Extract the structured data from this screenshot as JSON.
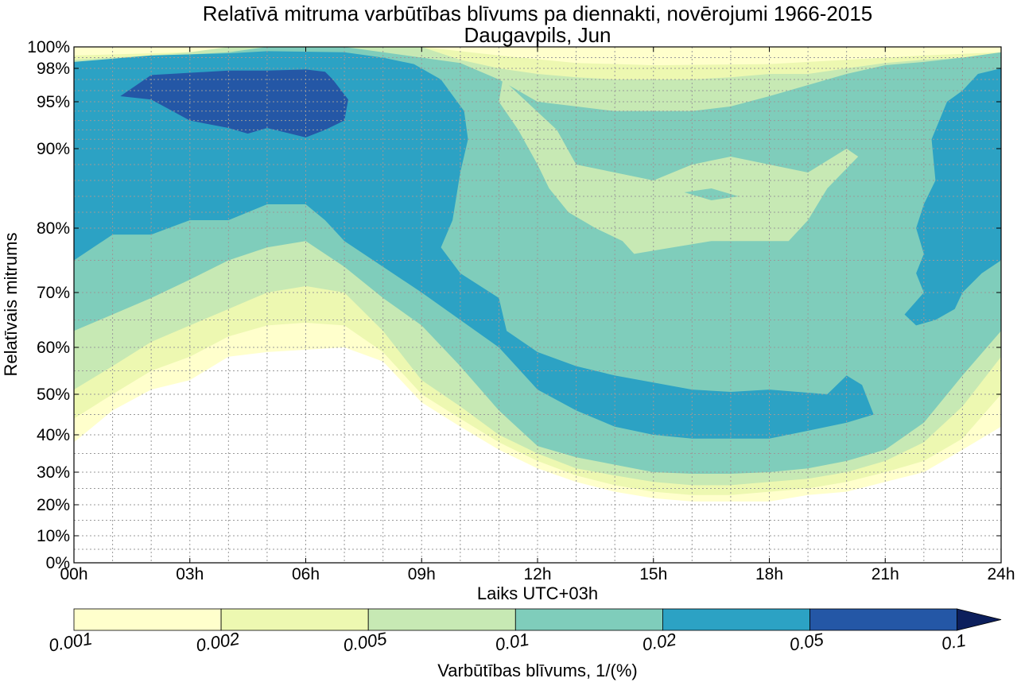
{
  "chart_data": {
    "type": "contour",
    "title": "Relatīvā mitruma varbūtības blīvums pa diennakti, novērojumi 1966-2015",
    "subtitle": "Daugavpils, Jun",
    "xlabel": "Laiks UTC+03h",
    "ylabel": "Relatīvais mitrums",
    "xlim": [
      0,
      24
    ],
    "x_ticks": [
      "00h",
      "03h",
      "06h",
      "09h",
      "12h",
      "15h",
      "18h",
      "21h",
      "24h"
    ],
    "y_scale": "nonlinear (stretched near 100%)",
    "y_ticks": [
      "0%",
      "10%",
      "20%",
      "30%",
      "40%",
      "50%",
      "60%",
      "70%",
      "80%",
      "90%",
      "95%",
      "98%",
      "100%"
    ],
    "grid": true,
    "colorbar": {
      "label": "Varbūtības blīvums, 1/(%)",
      "levels": [
        "0.001",
        "0.002",
        "0.005",
        "0.01",
        "0.02",
        "0.05",
        "0.1"
      ],
      "colors": [
        "#ffffcc",
        "#edf8b1",
        "#c7e9b4",
        "#7fcdbb",
        "#2ca2c4",
        "#2457a6",
        "#0c1f5c"
      ],
      "extend": "max"
    },
    "contour_bands": [
      {
        "level": "0.001",
        "description": "outer envelope",
        "lower_bound_at_hours": {
          "0": 38,
          "3": 53,
          "6": 59,
          "7": 60,
          "9": 48,
          "12": 31,
          "15": 22,
          "18": 21,
          "21": 27,
          "24": 42
        },
        "upper_bound": 100
      },
      {
        "level": "0.002",
        "lower_bound_at_hours": {
          "0": 44,
          "3": 58,
          "6": 64,
          "9": 50,
          "12": 33,
          "15": 24,
          "18": 24,
          "21": 30,
          "24": 50
        }
      },
      {
        "level": "0.005",
        "lower_bound_at_hours": {
          "0": 51,
          "3": 64,
          "6": 71,
          "9": 53,
          "12": 35,
          "15": 27,
          "18": 27,
          "21": 33,
          "24": 58
        }
      },
      {
        "level": "0.01",
        "lower_bound_at_hours": {
          "0": 63,
          "3": 72,
          "6": 78,
          "9": 64,
          "12": 37,
          "15": 30,
          "18": 30,
          "21": 36,
          "24": 63
        }
      },
      {
        "level": "0.02",
        "lower_bound_at_hours": {
          "0": 75,
          "3": 83,
          "6": 83,
          "9": 70,
          "12": 50,
          "15": 40,
          "18": 36,
          "21": 44,
          "24": 75
        }
      },
      {
        "level": "0.05",
        "description": "night maximum at 94–98% between 02h and 07h"
      }
    ]
  }
}
